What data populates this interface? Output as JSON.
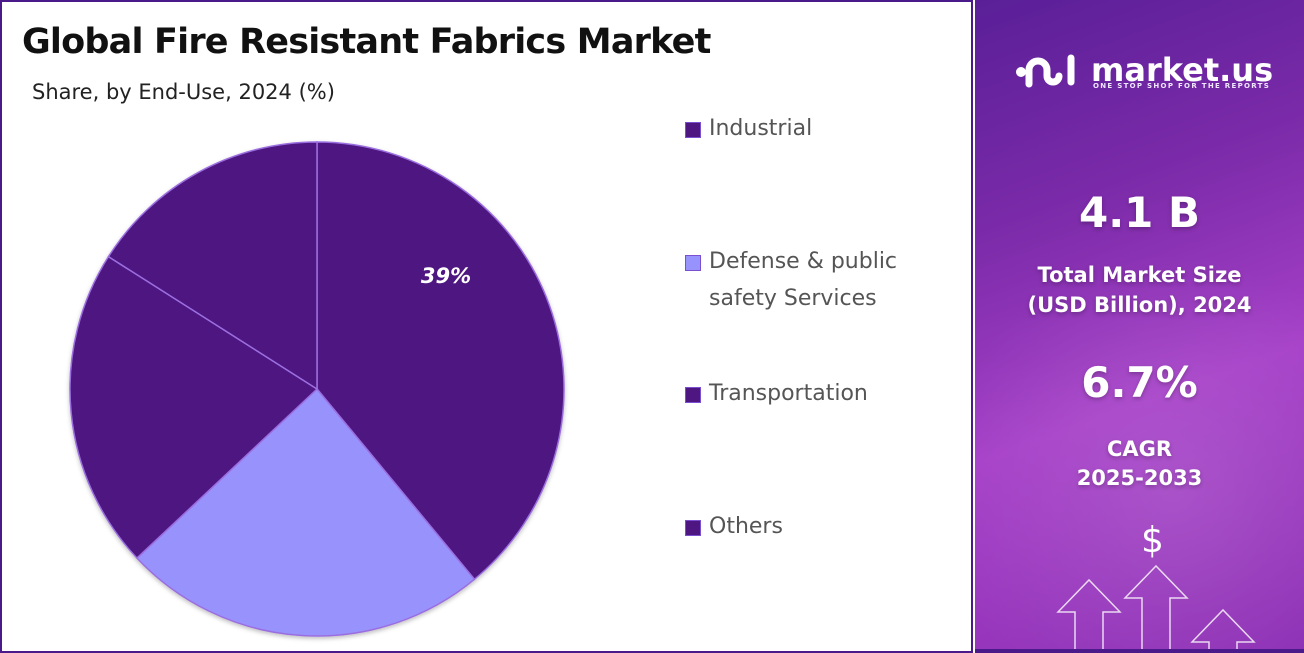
{
  "header": {
    "title": "Global Fire Resistant Fabrics Market",
    "subtitle": "Share, by End-Use, 2024 (%)"
  },
  "legend": [
    {
      "label": "Industrial",
      "color": "#4e1680"
    },
    {
      "label": "Defense & public safety Services",
      "line1": "Defense & public",
      "line2": "safety Services",
      "color": "#9892fc"
    },
    {
      "label": "Transportation",
      "color": "#4e1680"
    },
    {
      "label": "Others",
      "color": "#4e1680"
    }
  ],
  "pie_label": "39%",
  "brand": {
    "name": "market.us",
    "tagline": "ONE STOP SHOP FOR THE REPORTS"
  },
  "stats": {
    "market_size_value": "4.1 B",
    "market_size_label_line1": "Total Market Size",
    "market_size_label_line2": "(USD Billion), 2024",
    "cagr_value": "6.7%",
    "cagr_label_line1": "CAGR",
    "cagr_label_line2": "2025-2033"
  },
  "icons": {
    "dollar": "$"
  },
  "colors": {
    "dark_purple": "#4e1680",
    "light_purple": "#9892fc",
    "border": "#4a1a8a"
  },
  "chart_data": {
    "type": "pie",
    "title": "Global Fire Resistant Fabrics Market",
    "subtitle": "Share, by End-Use, 2024 (%)",
    "categories": [
      "Industrial",
      "Defense & public safety Services",
      "Transportation",
      "Others"
    ],
    "values": [
      39,
      24,
      21,
      16
    ],
    "labeled_values": {
      "Industrial": "39%"
    },
    "colors": [
      "#4e1680",
      "#9892fc",
      "#4e1680",
      "#4e1680"
    ],
    "start_angle": "12 o'clock, clockwise",
    "legend_position": "right"
  }
}
